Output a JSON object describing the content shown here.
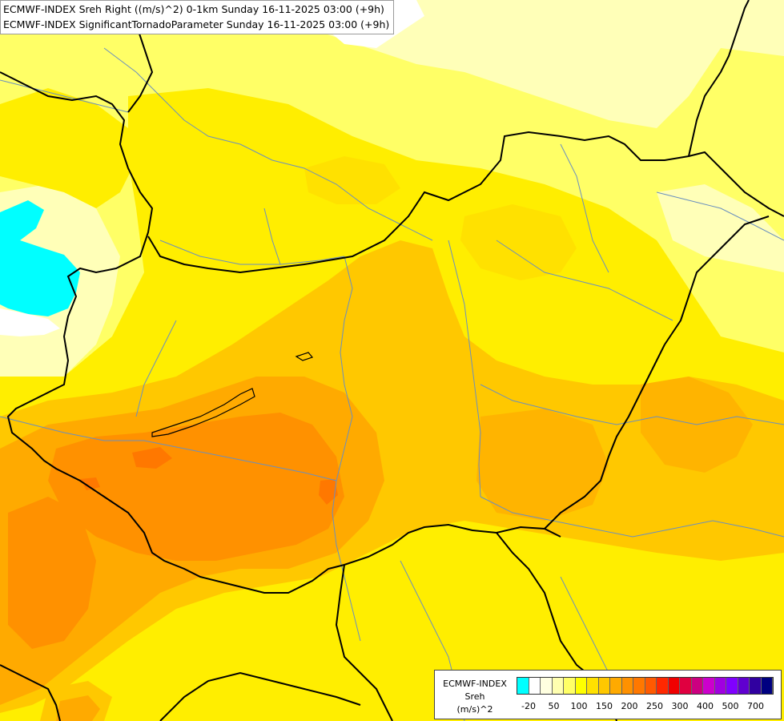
{
  "header": {
    "line1": "ECMWF-INDEX Sreh Right ((m/s)^2) 0-1km Sunday 16-11-2025 03:00 (+9h)",
    "line2": "ECMWF-INDEX SignificantTornadoParameter Sunday 16-11-2025 03:00 (+9h)"
  },
  "legend": {
    "title": "ECMWF-INDEX",
    "variable": "Sreh",
    "unit": "(m/s)^2",
    "tick_labels": [
      "-20",
      "50",
      "100",
      "150",
      "200",
      "250",
      "300",
      "400",
      "500",
      "700"
    ],
    "colors": [
      "#00ffff",
      "#ffffff",
      "#ffffe0",
      "#ffffb0",
      "#ffff66",
      "#ffff00",
      "#ffe100",
      "#ffc800",
      "#ffaa00",
      "#ff9100",
      "#ff7800",
      "#ff5a00",
      "#ff2800",
      "#f00000",
      "#e00040",
      "#cc0080",
      "#cc00cc",
      "#a000e0",
      "#8000ff",
      "#6000d0",
      "#3000a0",
      "#000080"
    ]
  }
}
